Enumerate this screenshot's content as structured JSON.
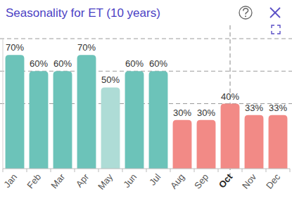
{
  "chart_data": {
    "type": "bar",
    "title": "Seasonality for ET (10 years)",
    "categories": [
      "Jan",
      "Feb",
      "Mar",
      "Apr",
      "May",
      "Jun",
      "Jul",
      "Aug",
      "Sep",
      "Oct",
      "Nov",
      "Dec"
    ],
    "values": [
      70,
      60,
      60,
      70,
      50,
      60,
      60,
      30,
      30,
      40,
      33,
      33
    ],
    "value_labels": [
      "70%",
      "60%",
      "60%",
      "70%",
      "50%",
      "60%",
      "60%",
      "30%",
      "30%",
      "40%",
      "33%",
      "33%"
    ],
    "colors": [
      "#6cc3b9",
      "#6cc3b9",
      "#6cc3b9",
      "#6cc3b9",
      "#aedcd6",
      "#6cc3b9",
      "#6cc3b9",
      "#f28a86",
      "#f28a86",
      "#f28a86",
      "#f28a86",
      "#f28a86"
    ],
    "ylim": [
      0,
      80
    ],
    "yticks": [
      40,
      60,
      80
    ],
    "grid": true,
    "data_labels": true,
    "tick_labels": "x"
  }
}
